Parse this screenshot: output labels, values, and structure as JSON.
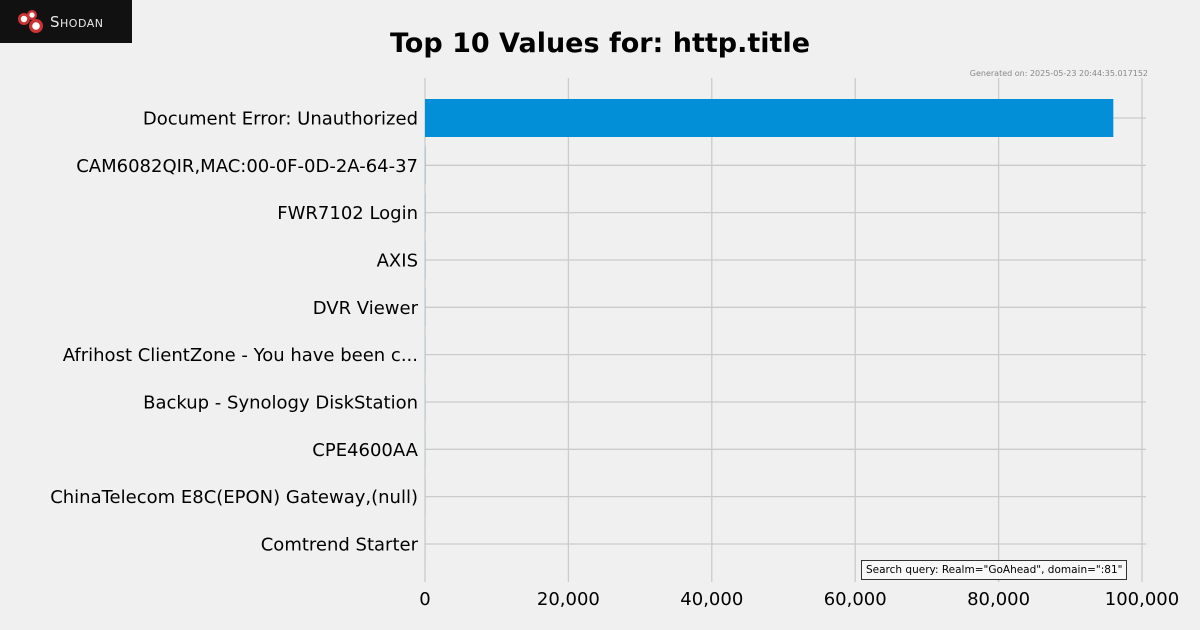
{
  "brand": {
    "logo_text": "Shodan",
    "logo_color": "#cc3333"
  },
  "header": {
    "title": "Top 10 Values for: http.title",
    "generated": "Generated on: 2025-05-23 20:44:35.017152"
  },
  "footer": {
    "query": "Search query: Realm=\"GoAhead\", domain=\":81\""
  },
  "chart_data": {
    "type": "bar",
    "orientation": "horizontal",
    "title": "Top 10 Values for: http.title",
    "categories": [
      "Document Error: Unauthorized",
      "CAM6082QIR,MAC:00-0F-0D-2A-64-37",
      "FWR7102 Login",
      "AXIS",
      "DVR Viewer",
      "Afrihost ClientZone - You have been c...",
      "Backup - Synology DiskStation",
      "CPE4600AA",
      "ChinaTelecom E8C(EPON) Gateway,(null)",
      "Comtrend Starter"
    ],
    "values": [
      96000,
      30,
      25,
      20,
      18,
      15,
      12,
      10,
      8,
      6
    ],
    "xlim": [
      0,
      100000
    ],
    "xticks": [
      "0",
      "20,000",
      "40,000",
      "60,000",
      "80,000",
      "100,000"
    ],
    "grid": true,
    "bar_color": "#028fd8"
  }
}
